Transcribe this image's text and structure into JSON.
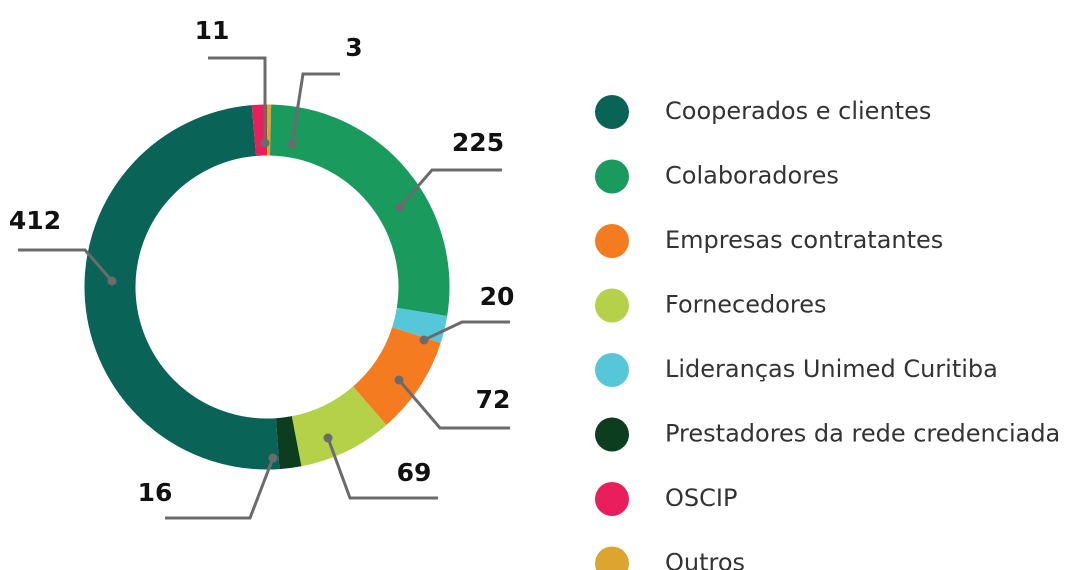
{
  "chart_data": {
    "type": "donut",
    "series": [
      {
        "name": "Cooperados e clientes",
        "color": "#0a6357",
        "values": [
          412
        ]
      },
      {
        "name": "Colaboradores",
        "color": "#1a9a5c",
        "values": [
          225
        ]
      },
      {
        "name": "Empresas contratantes",
        "color": "#f47b20",
        "values": [
          72
        ]
      },
      {
        "name": "Fornecedores",
        "color": "#b5d14a",
        "values": [
          69
        ]
      },
      {
        "name": "Lideranças Unimed Curitiba",
        "color": "#56c7d9",
        "values": [
          20
        ]
      },
      {
        "name": "Prestadores da rede credenciada",
        "color": "#0d3d1f",
        "values": [
          16
        ]
      },
      {
        "name": "OSCIP",
        "color": "#ea1d5d",
        "values": [
          11
        ]
      },
      {
        "name": "Outros",
        "color": "#dca52f",
        "values": [
          3
        ]
      }
    ]
  }
}
